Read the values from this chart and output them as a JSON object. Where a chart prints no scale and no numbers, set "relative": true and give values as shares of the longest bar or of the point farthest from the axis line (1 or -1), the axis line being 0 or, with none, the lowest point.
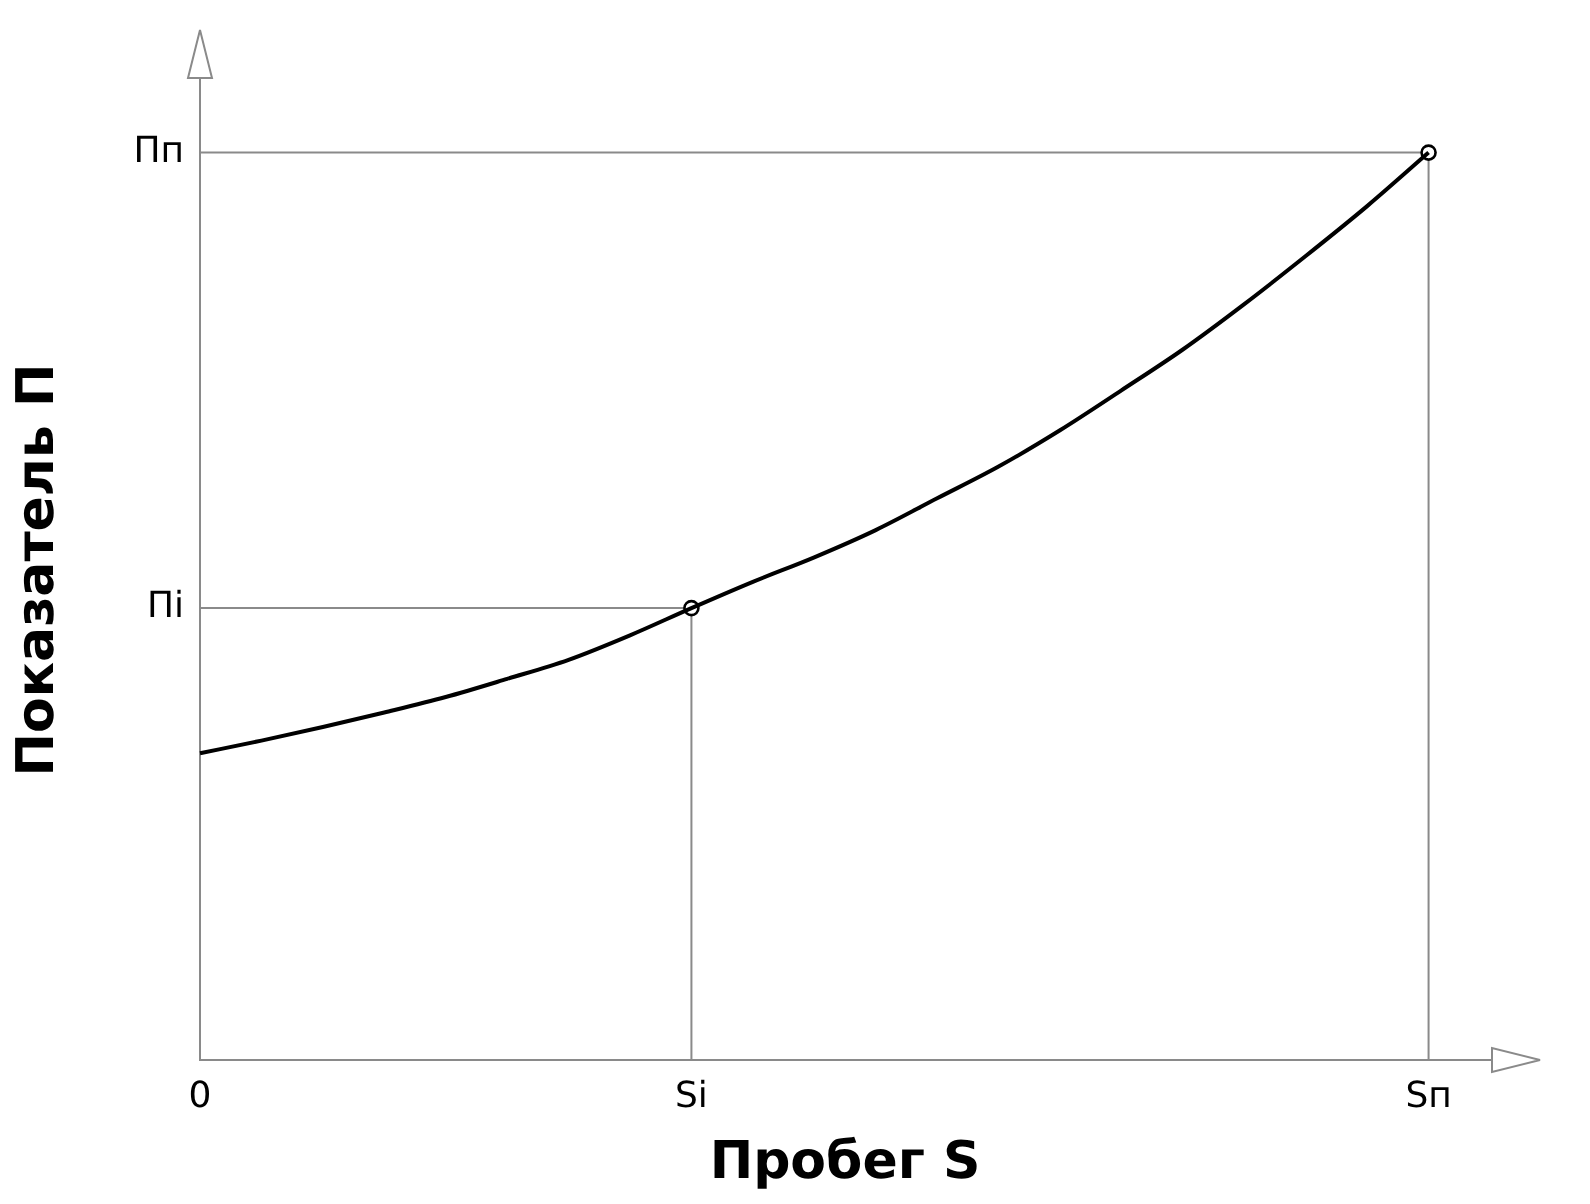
{
  "chart_data": {
    "type": "line",
    "relative": true,
    "xlabel": "Пробег S",
    "ylabel": "Показатель П",
    "categories": [
      "0",
      null,
      null,
      null,
      null,
      null,
      null,
      null,
      "Si",
      null,
      null,
      null,
      null,
      null,
      null,
      null,
      null,
      null,
      null,
      null,
      "Sп",
      null
    ],
    "grid": false,
    "legend": false,
    "marker": "none",
    "series": [
      {
        "color": "#000000",
        "values": [
          0.338,
          0.352,
          0.367,
          0.383,
          0.4,
          0.42,
          0.441,
          0.468,
          0.498,
          0.527,
          0.554,
          0.584,
          0.619,
          0.654,
          0.694,
          0.738,
          0.783,
          0.833,
          0.886,
          0.941,
          1,
          null
        ]
      },
      {
        "type": "scatter",
        "color": "#000000",
        "marker": "circle",
        "values": [
          null,
          null,
          null,
          null,
          null,
          null,
          null,
          null,
          0.498,
          null,
          null,
          null,
          null,
          null,
          null,
          null,
          null,
          null,
          null,
          null,
          1,
          null
        ]
      }
    ],
    "annotations": [
      "Пi",
      "Пп"
    ]
  }
}
